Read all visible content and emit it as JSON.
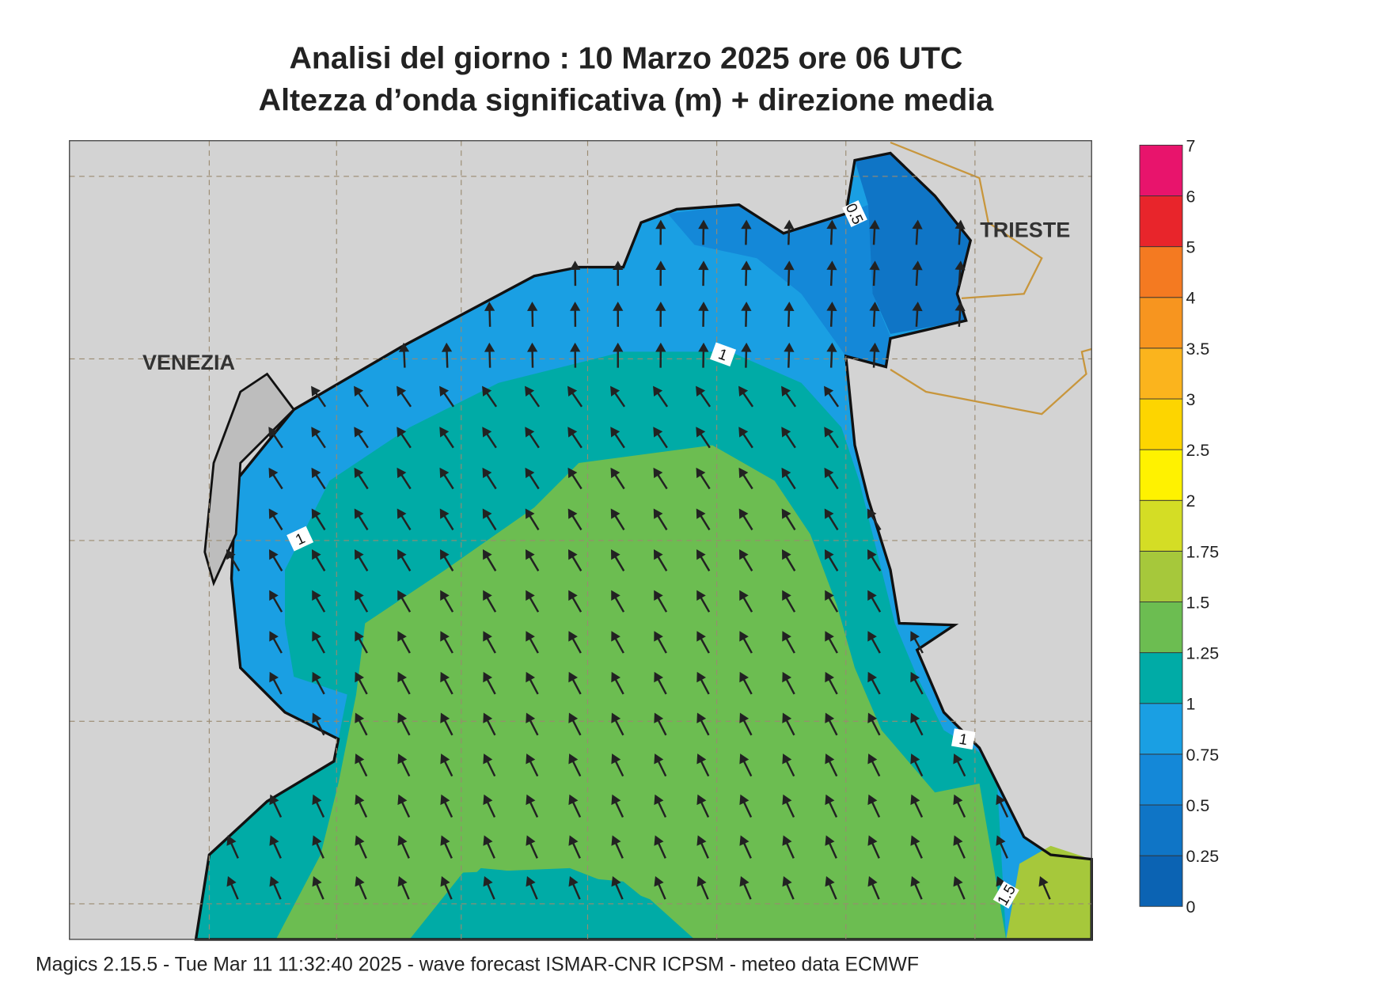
{
  "title": {
    "line1": "Analisi del giorno :  10   Marzo   2025   ore 06 UTC",
    "line2": "Altezza d’onda significativa (m) + direzione media"
  },
  "map": {
    "places": [
      "VENEZIA",
      "TRIESTE"
    ],
    "contour_labels": [
      0.5,
      1,
      1,
      1,
      1.5
    ]
  },
  "colorbar": {
    "levels": [
      0,
      0.25,
      0.5,
      0.75,
      1,
      1.25,
      1.5,
      1.75,
      2,
      2.5,
      3,
      3.5,
      4,
      5,
      6,
      7
    ],
    "colors": [
      "#0b63b3",
      "#0f75c6",
      "#1488d8",
      "#1a9fe3",
      "#00aba6",
      "#6cbd51",
      "#a6c83b",
      "#d4dd25",
      "#fff200",
      "#fdd500",
      "#fbb41d",
      "#f7951f",
      "#f47a21",
      "#e8252b",
      "#e8146c"
    ]
  },
  "footer": "Magics 2.15.5 - Tue Mar 11 11:32:40 2025 - wave forecast  ISMAR-CNR  ICPSM - meteo data   ECMWF"
}
